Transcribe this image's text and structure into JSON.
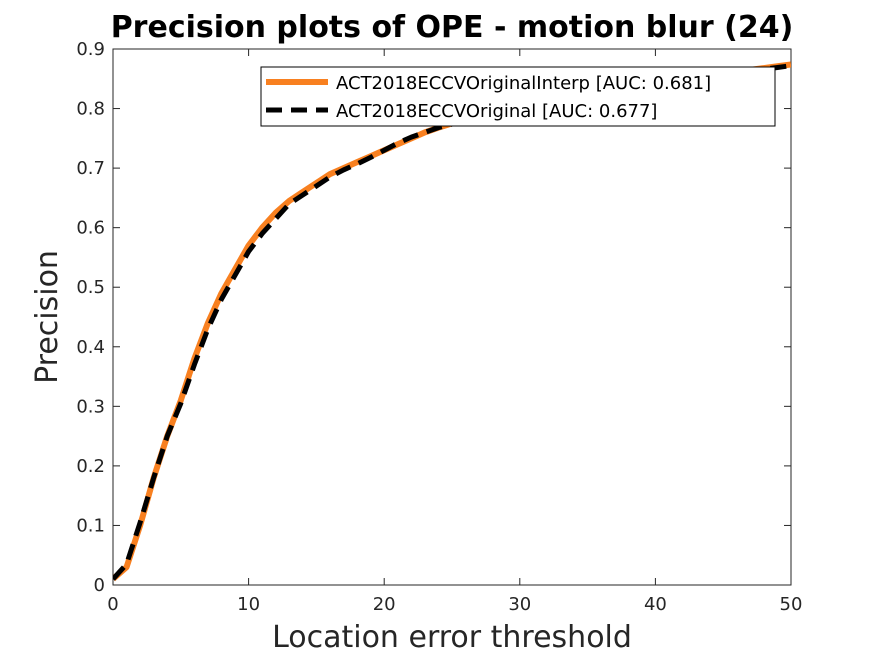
{
  "chart_data": {
    "type": "line",
    "title": "Precision plots of OPE - motion blur (24)",
    "xlabel": "Location error threshold",
    "ylabel": "Precision",
    "xlim": [
      0,
      50
    ],
    "ylim": [
      0,
      0.9
    ],
    "xticks": [
      "0",
      "10",
      "20",
      "30",
      "40",
      "50"
    ],
    "yticks": [
      "0",
      "0.1",
      "0.2",
      "0.3",
      "0.4",
      "0.5",
      "0.6",
      "0.7",
      "0.8",
      "0.9"
    ],
    "grid": false,
    "legend_position": "top-right",
    "x": [
      0,
      1,
      2,
      3,
      4,
      5,
      6,
      7,
      8,
      9,
      10,
      11,
      12,
      13,
      14,
      15,
      16,
      17,
      18,
      19,
      20,
      21,
      22,
      23,
      24,
      25,
      26,
      27,
      28,
      29,
      30,
      31,
      32,
      33,
      34,
      35,
      36,
      37,
      38,
      39,
      40,
      41,
      42,
      43,
      44,
      45,
      46,
      47,
      48,
      49,
      50
    ],
    "series": [
      {
        "name": "ACT2018ECCVOriginalInterp [AUC: 0.681]",
        "color": "#f88020",
        "style": "solid",
        "values": [
          0.01,
          0.03,
          0.1,
          0.18,
          0.25,
          0.31,
          0.38,
          0.44,
          0.49,
          0.53,
          0.57,
          0.6,
          0.625,
          0.645,
          0.66,
          0.675,
          0.69,
          0.7,
          0.71,
          0.72,
          0.73,
          0.74,
          0.75,
          0.76,
          0.768,
          0.775,
          0.782,
          0.788,
          0.793,
          0.798,
          0.802,
          0.806,
          0.81,
          0.814,
          0.818,
          0.822,
          0.826,
          0.83,
          0.834,
          0.838,
          0.842,
          0.846,
          0.85,
          0.853,
          0.856,
          0.859,
          0.862,
          0.865,
          0.868,
          0.871,
          0.874
        ]
      },
      {
        "name": "ACT2018ECCVOriginal [AUC: 0.677]",
        "color": "#000000",
        "style": "dashed",
        "values": [
          0.01,
          0.035,
          0.105,
          0.18,
          0.25,
          0.305,
          0.37,
          0.43,
          0.48,
          0.52,
          0.56,
          0.59,
          0.615,
          0.64,
          0.655,
          0.67,
          0.685,
          0.697,
          0.707,
          0.718,
          0.73,
          0.742,
          0.752,
          0.76,
          0.768,
          0.774,
          0.78,
          0.786,
          0.791,
          0.796,
          0.8,
          0.804,
          0.808,
          0.812,
          0.816,
          0.82,
          0.824,
          0.828,
          0.832,
          0.836,
          0.84,
          0.844,
          0.848,
          0.851,
          0.854,
          0.857,
          0.86,
          0.863,
          0.866,
          0.869,
          0.872
        ]
      }
    ]
  }
}
